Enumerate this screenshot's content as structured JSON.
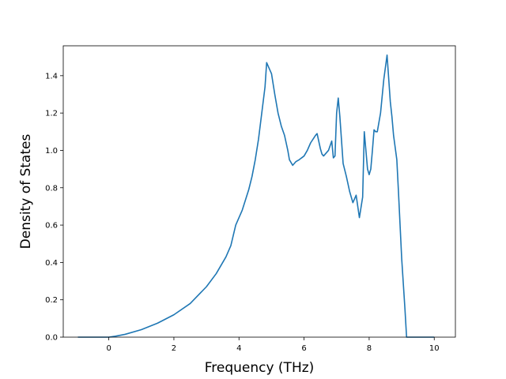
{
  "chart_data": {
    "type": "line",
    "title": "",
    "xlabel": "Frequency (THz)",
    "ylabel": "Density of States",
    "xlim": [
      -1.4,
      10.65
    ],
    "ylim": [
      0.0,
      1.56
    ],
    "xticks": [
      0,
      2,
      4,
      6,
      8,
      10
    ],
    "xtick_labels": [
      "0",
      "2",
      "4",
      "6",
      "8",
      "10"
    ],
    "yticks": [
      0.0,
      0.2,
      0.4,
      0.6,
      0.8,
      1.0,
      1.2,
      1.4
    ],
    "ytick_labels": [
      "0.0",
      "0.2",
      "0.4",
      "0.6",
      "0.8",
      "1.0",
      "1.2",
      "1.4"
    ],
    "grid": false,
    "line_color": "#1f77b4",
    "series": [
      {
        "x": [
          -0.95,
          -0.5,
          0.0,
          0.2,
          0.5,
          1.0,
          1.5,
          2.0,
          2.5,
          3.0,
          3.3,
          3.6,
          3.75,
          3.9,
          4.1,
          4.3,
          4.4,
          4.5,
          4.6,
          4.7,
          4.8,
          4.85,
          4.9,
          5.0,
          5.1,
          5.2,
          5.3,
          5.4,
          5.45,
          5.5,
          5.55,
          5.65,
          5.75,
          5.85,
          6.0,
          6.1,
          6.2,
          6.35,
          6.4,
          6.5,
          6.55,
          6.6,
          6.75,
          6.85,
          6.9,
          6.95,
          7.0,
          7.05,
          7.1,
          7.2,
          7.3,
          7.4,
          7.5,
          7.6,
          7.65,
          7.7,
          7.8,
          7.85,
          7.9,
          7.95,
          8.0,
          8.05,
          8.1,
          8.15,
          8.2,
          8.25,
          8.3,
          8.35,
          8.45,
          8.55,
          8.65,
          8.7,
          8.75,
          8.85,
          8.9,
          8.95,
          9.0,
          9.1,
          9.15,
          9.2,
          9.3,
          10.0
        ],
        "y": [
          0.0,
          0.0,
          0.0,
          0.005,
          0.015,
          0.04,
          0.075,
          0.12,
          0.18,
          0.27,
          0.34,
          0.43,
          0.49,
          0.6,
          0.68,
          0.79,
          0.86,
          0.95,
          1.06,
          1.2,
          1.34,
          1.47,
          1.45,
          1.41,
          1.3,
          1.2,
          1.13,
          1.08,
          1.04,
          1.0,
          0.95,
          0.92,
          0.94,
          0.95,
          0.97,
          1.0,
          1.04,
          1.08,
          1.09,
          1.01,
          0.98,
          0.97,
          1.0,
          1.05,
          0.96,
          0.97,
          1.2,
          1.28,
          1.18,
          0.93,
          0.86,
          0.78,
          0.72,
          0.76,
          0.7,
          0.64,
          0.75,
          1.1,
          1.0,
          0.9,
          0.87,
          0.9,
          1.0,
          1.11,
          1.1,
          1.1,
          1.15,
          1.2,
          1.38,
          1.51,
          1.26,
          1.18,
          1.08,
          0.95,
          0.78,
          0.6,
          0.42,
          0.15,
          0.0,
          0.0,
          0.0,
          0.0
        ]
      }
    ]
  }
}
